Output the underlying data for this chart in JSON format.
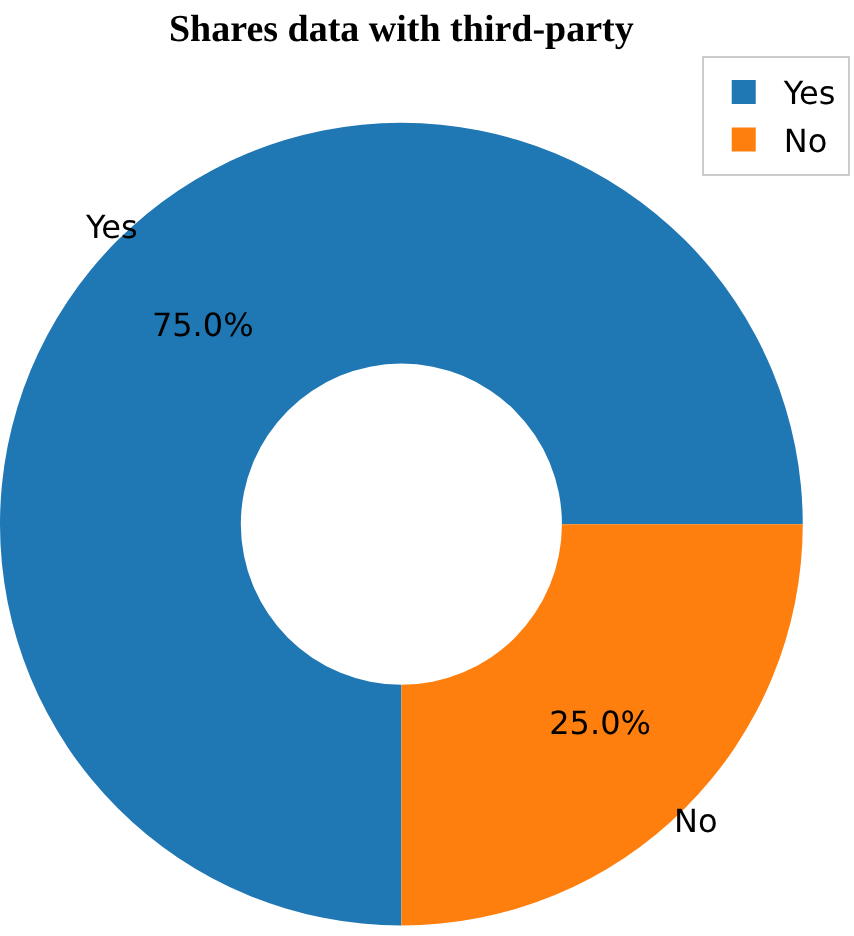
{
  "chart_data": {
    "type": "donut",
    "title": "Shares data with third-party",
    "categories": [
      "Yes",
      "No"
    ],
    "values": [
      75,
      25
    ],
    "colors": [
      "#1f77b4",
      "#ff7f0e"
    ],
    "value_labels": [
      "75.0%",
      "25.0%"
    ],
    "legend": "top right"
  }
}
